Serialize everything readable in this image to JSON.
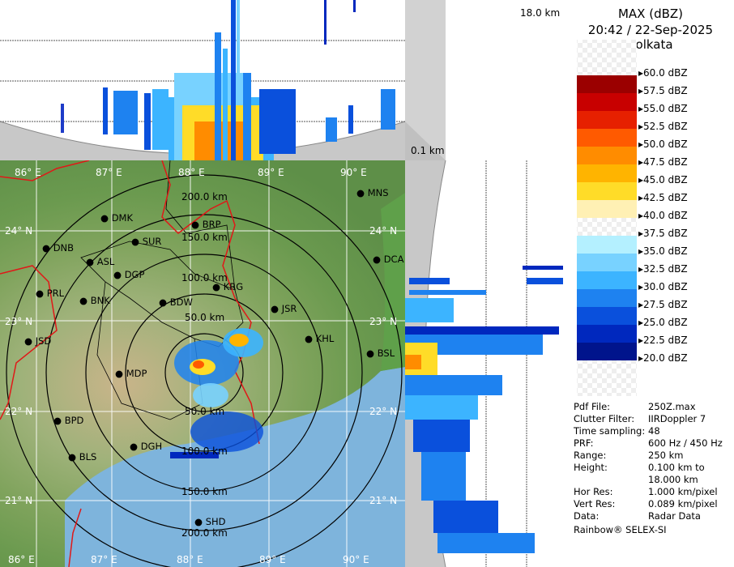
{
  "product": {
    "title": "MAX (dBZ)",
    "datetime": "20:42 / 22-Sep-2025",
    "station": "Kolkata"
  },
  "height_labels": {
    "top": "18.0 km",
    "bottom": "0.1 km"
  },
  "legend": {
    "levels": [
      {
        "label": "60.0 dBZ",
        "color": "#ffffff"
      },
      {
        "label": "57.5 dBZ",
        "color": "#9b0000"
      },
      {
        "label": "55.0 dBZ",
        "color": "#c80000"
      },
      {
        "label": "52.5 dBZ",
        "color": "#e62000"
      },
      {
        "label": "50.0 dBZ",
        "color": "#ff5a00"
      },
      {
        "label": "47.5 dBZ",
        "color": "#ff8c00"
      },
      {
        "label": "45.0 dBZ",
        "color": "#ffb400"
      },
      {
        "label": "42.5 dBZ",
        "color": "#ffdc28"
      },
      {
        "label": "40.0 dBZ",
        "color": "#fff0b4"
      },
      {
        "label": "37.5 dBZ",
        "color": "#ffffff"
      },
      {
        "label": "35.0 dBZ",
        "color": "#b4f0ff"
      },
      {
        "label": "32.5 dBZ",
        "color": "#78d2ff"
      },
      {
        "label": "30.0 dBZ",
        "color": "#3cb4ff"
      },
      {
        "label": "27.5 dBZ",
        "color": "#1e82f0"
      },
      {
        "label": "25.0 dBZ",
        "color": "#0a50dc"
      },
      {
        "label": "22.5 dBZ",
        "color": "#0028be"
      },
      {
        "label": "20.0 dBZ",
        "color": "#00148c"
      }
    ]
  },
  "info": [
    {
      "key": "Pdf File:",
      "value": "250Z.max"
    },
    {
      "key": "Clutter Filter:",
      "value": "IIRDoppler 7"
    },
    {
      "key": "Time sampling:",
      "value": "48"
    },
    {
      "key": "PRF:",
      "value": "600 Hz / 450 Hz"
    },
    {
      "key": "Range:",
      "value": "250 km"
    },
    {
      "key": "Height:",
      "value": "0.100 km to"
    },
    {
      "key": "",
      "value": "18.000 km"
    },
    {
      "key": "Hor Res:",
      "value": "1.000 km/pixel"
    },
    {
      "key": "Vert Res:",
      "value": "0.089 km/pixel"
    },
    {
      "key": "Data:",
      "value": "Radar Data"
    }
  ],
  "credit": "Rainbow® SELEX-SI",
  "map": {
    "lon_top": [
      "86° E",
      "87° E",
      "88° E",
      "89° E",
      "90° E"
    ],
    "lon_bottom": [
      "86° E",
      "87° E",
      "88° E",
      "89° E",
      "90° E"
    ],
    "lat_left": [
      "24° N",
      "23° N",
      "22° N",
      "21° N"
    ],
    "lat_right": [
      "24° N",
      "23° N",
      "22° N",
      "21° N"
    ],
    "range_rings": [
      "200.0 km",
      "150.0 km",
      "100.0 km",
      "50.0 km",
      "50.0 km",
      "100.0 km",
      "150.0 km",
      "200.0 km"
    ],
    "cities": [
      "MNS",
      "DMK",
      "BRP",
      "SUR",
      "DNB",
      "ASL",
      "DGP",
      "DCA",
      "KRG",
      "PRL",
      "BNK",
      "BDW",
      "JSR",
      "KHL",
      "JSD",
      "BSL",
      "MDP",
      "DGH",
      "BPD",
      "BLS",
      "SHD"
    ]
  }
}
